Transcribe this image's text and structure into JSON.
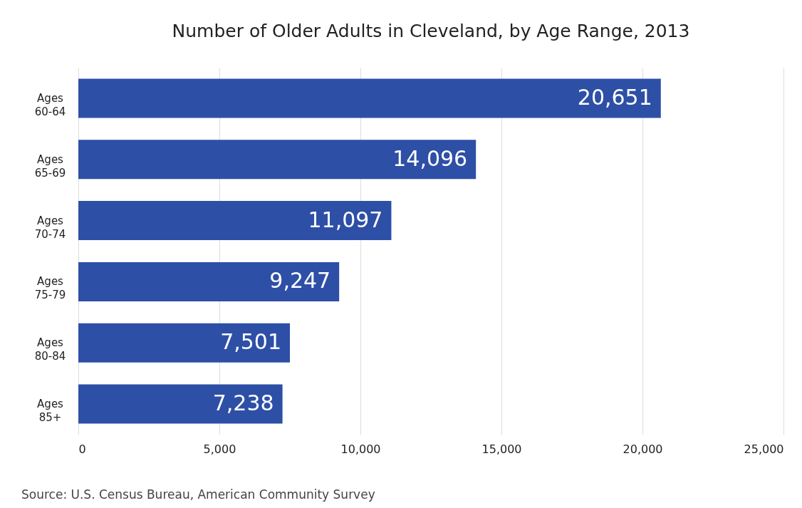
{
  "chart_data": {
    "type": "bar",
    "orientation": "horizontal",
    "title": "Number of Older Adults in Cleveland, by Age Range, 2013",
    "categories": [
      "Ages 60-64",
      "Ages 65-69",
      "Ages 70-74",
      "Ages 75-79",
      "Ages 80-84",
      "Ages 85+"
    ],
    "values": [
      20651,
      14096,
      11097,
      9247,
      7501,
      7238
    ],
    "color": "#2e4fa6",
    "value_labels": [
      "20,651",
      "14,096",
      "11,097",
      "9,247",
      "7,501",
      "7,238"
    ],
    "xlim": [
      0,
      25000
    ],
    "xticks": [
      0,
      {
        "value": 5000,
        "label": "5,000"
      },
      {
        "value": 10000,
        "label": "10,000"
      },
      {
        "value": 15000,
        "label": "15,000"
      },
      {
        "value": 20000,
        "label": "20,000"
      },
      {
        "value": 25000,
        "label": "25,000"
      }
    ],
    "grid": "x",
    "annotations": [
      "Source: U.S. Census Bureau, American Community Survey"
    ]
  }
}
